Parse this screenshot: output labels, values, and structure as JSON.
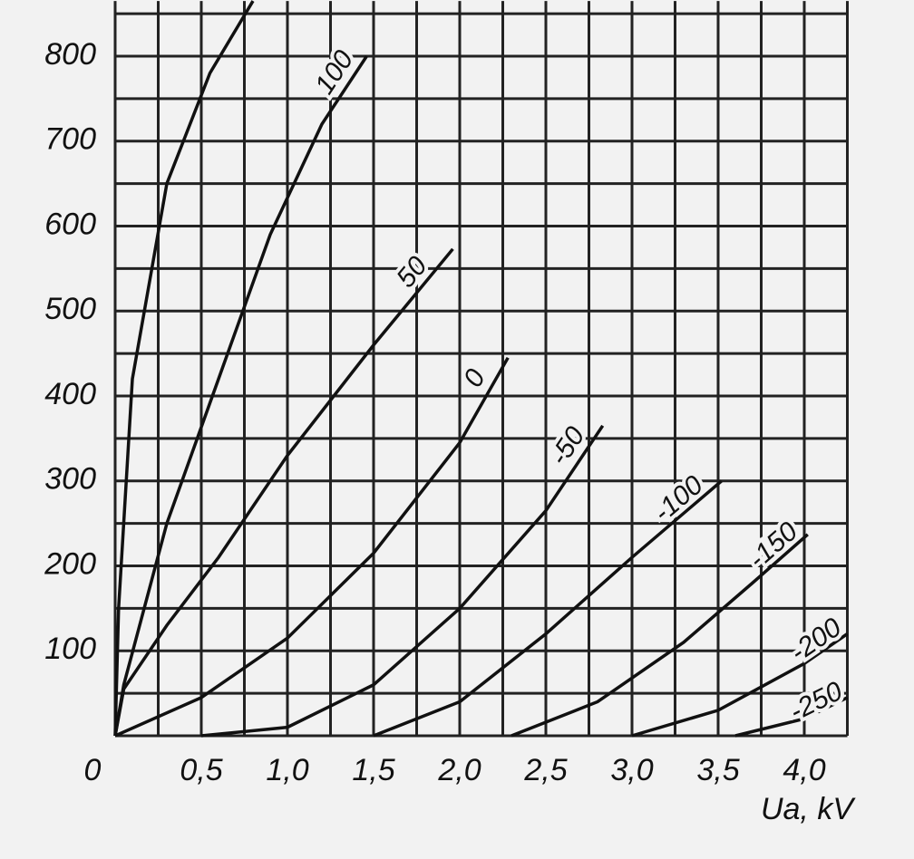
{
  "chart_data": {
    "type": "line",
    "x_label": "Ua, kV",
    "xlim": [
      0,
      4.25
    ],
    "ylim": [
      0,
      865
    ],
    "xticks": [
      0,
      {
        "value": 0.5,
        "label": "0,5"
      },
      {
        "value": 1.0,
        "label": "1,0"
      },
      {
        "value": 1.5,
        "label": "1,5"
      },
      {
        "value": 2.0,
        "label": "2,0"
      },
      {
        "value": 2.5,
        "label": "2,5"
      },
      {
        "value": 3.0,
        "label": "3,0"
      },
      {
        "value": 3.5,
        "label": "3,5"
      },
      {
        "value": 4.0,
        "label": "4,0"
      }
    ],
    "yticks": [
      100,
      200,
      300,
      400,
      500,
      600,
      700,
      800
    ],
    "xgrid": [
      0,
      0.25,
      0.5,
      0.75,
      1.0,
      1.25,
      1.5,
      1.75,
      2.0,
      2.25,
      2.5,
      2.75,
      3.0,
      3.25,
      3.5,
      3.75,
      4.0,
      4.25
    ],
    "ygrid": [
      0,
      50,
      100,
      150,
      200,
      250,
      300,
      350,
      400,
      450,
      500,
      550,
      600,
      650,
      700,
      750,
      800,
      850
    ],
    "grid": true,
    "color": "#111111",
    "series": [
      {
        "name": null,
        "x": [
          0,
          0.02,
          0.1,
          0.3,
          0.55,
          0.8
        ],
        "values": [
          0,
          150,
          420,
          650,
          780,
          865
        ]
      },
      {
        "name": "100",
        "x": [
          0,
          0.05,
          0.3,
          0.6,
          0.9,
          1.2,
          1.46
        ],
        "values": [
          0,
          60,
          250,
          420,
          590,
          720,
          800
        ]
      },
      {
        "name": "50",
        "x": [
          0,
          0.05,
          0.3,
          0.6,
          1.0,
          1.5,
          1.96
        ],
        "values": [
          0,
          55,
          130,
          210,
          330,
          460,
          573
        ]
      },
      {
        "name": "0",
        "x": [
          0,
          0.5,
          1.0,
          1.5,
          2.0,
          2.28
        ],
        "values": [
          0,
          45,
          115,
          215,
          345,
          445
        ]
      },
      {
        "name": "-50",
        "x": [
          0.5,
          1.0,
          1.5,
          2.0,
          2.5,
          2.83
        ],
        "values": [
          0,
          10,
          60,
          150,
          265,
          365
        ]
      },
      {
        "name": "-100",
        "x": [
          1.5,
          2.0,
          2.5,
          3.0,
          3.52
        ],
        "values": [
          0,
          40,
          120,
          210,
          300
        ]
      },
      {
        "name": "-150",
        "x": [
          2.3,
          2.8,
          3.3,
          3.7,
          4.02
        ],
        "values": [
          0,
          40,
          110,
          180,
          237
        ]
      },
      {
        "name": "-200",
        "x": [
          3.0,
          3.5,
          4.0,
          4.25
        ],
        "values": [
          0,
          30,
          85,
          120
        ]
      },
      {
        "name": "-250",
        "x": [
          3.6,
          4.0,
          4.25
        ],
        "values": [
          0,
          20,
          45
        ]
      }
    ]
  }
}
